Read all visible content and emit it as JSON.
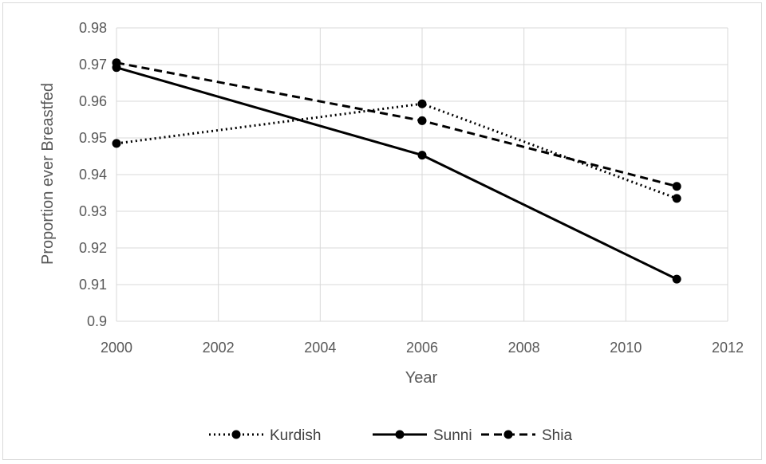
{
  "chart_data": {
    "type": "line",
    "title": "",
    "xlabel": "Year",
    "ylabel": "Proportion ever Breastfed",
    "xlim": [
      2000,
      2012
    ],
    "ylim": [
      0.9,
      0.98
    ],
    "x_ticks": [
      "2000",
      "2002",
      "2004",
      "2006",
      "2008",
      "2010",
      "2012"
    ],
    "y_ticks": [
      "0.9",
      "0.91",
      "0.92",
      "0.93",
      "0.94",
      "0.95",
      "0.96",
      "0.97",
      "0.98"
    ],
    "grid": true,
    "legend_position": "bottom",
    "series": [
      {
        "name": "Kurdish",
        "style": "dotted",
        "color": "#000000",
        "x": [
          2000,
          2006,
          2011
        ],
        "y": [
          0.9485,
          0.9593,
          0.9335
        ]
      },
      {
        "name": "Sunni",
        "style": "solid",
        "color": "#000000",
        "x": [
          2000,
          2006,
          2011
        ],
        "y": [
          0.9692,
          0.9453,
          0.9115
        ]
      },
      {
        "name": "Shia",
        "style": "dashed",
        "color": "#000000",
        "x": [
          2000,
          2006,
          2011
        ],
        "y": [
          0.9705,
          0.9547,
          0.9368
        ]
      }
    ]
  }
}
